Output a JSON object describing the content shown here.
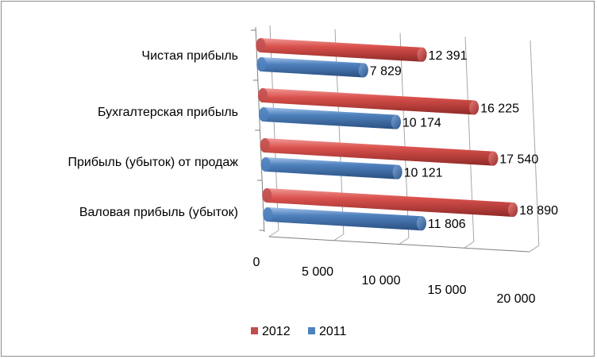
{
  "chart_data": {
    "type": "bar",
    "orientation": "horizontal",
    "style": "3d-cylinder",
    "categories": [
      "Валовая прибыль (убыток)",
      "Прибыль (убыток) от продаж",
      "Бухгалтерская прибыль",
      "Чистая прибыль"
    ],
    "series": [
      {
        "name": "2012",
        "values": [
          18890,
          17540,
          16225,
          12391
        ],
        "color": "#c0504d"
      },
      {
        "name": "2011",
        "values": [
          11806,
          10121,
          10174,
          7829
        ],
        "color": "#4f81bd"
      }
    ],
    "value_labels": {
      "2012": [
        "18 890",
        "17 540",
        "16 225",
        "12 391"
      ],
      "2011": [
        "11 806",
        "10 121",
        "10 174",
        "7 829"
      ]
    },
    "xlim": [
      0,
      20000
    ],
    "ticks": [
      0,
      5000,
      10000,
      15000,
      20000
    ],
    "tick_labels": [
      "0",
      "5 000",
      "10 000",
      "15 000",
      "20 000"
    ],
    "grid": true,
    "legend_position": "bottom",
    "legend": [
      "2012",
      "2011"
    ]
  }
}
